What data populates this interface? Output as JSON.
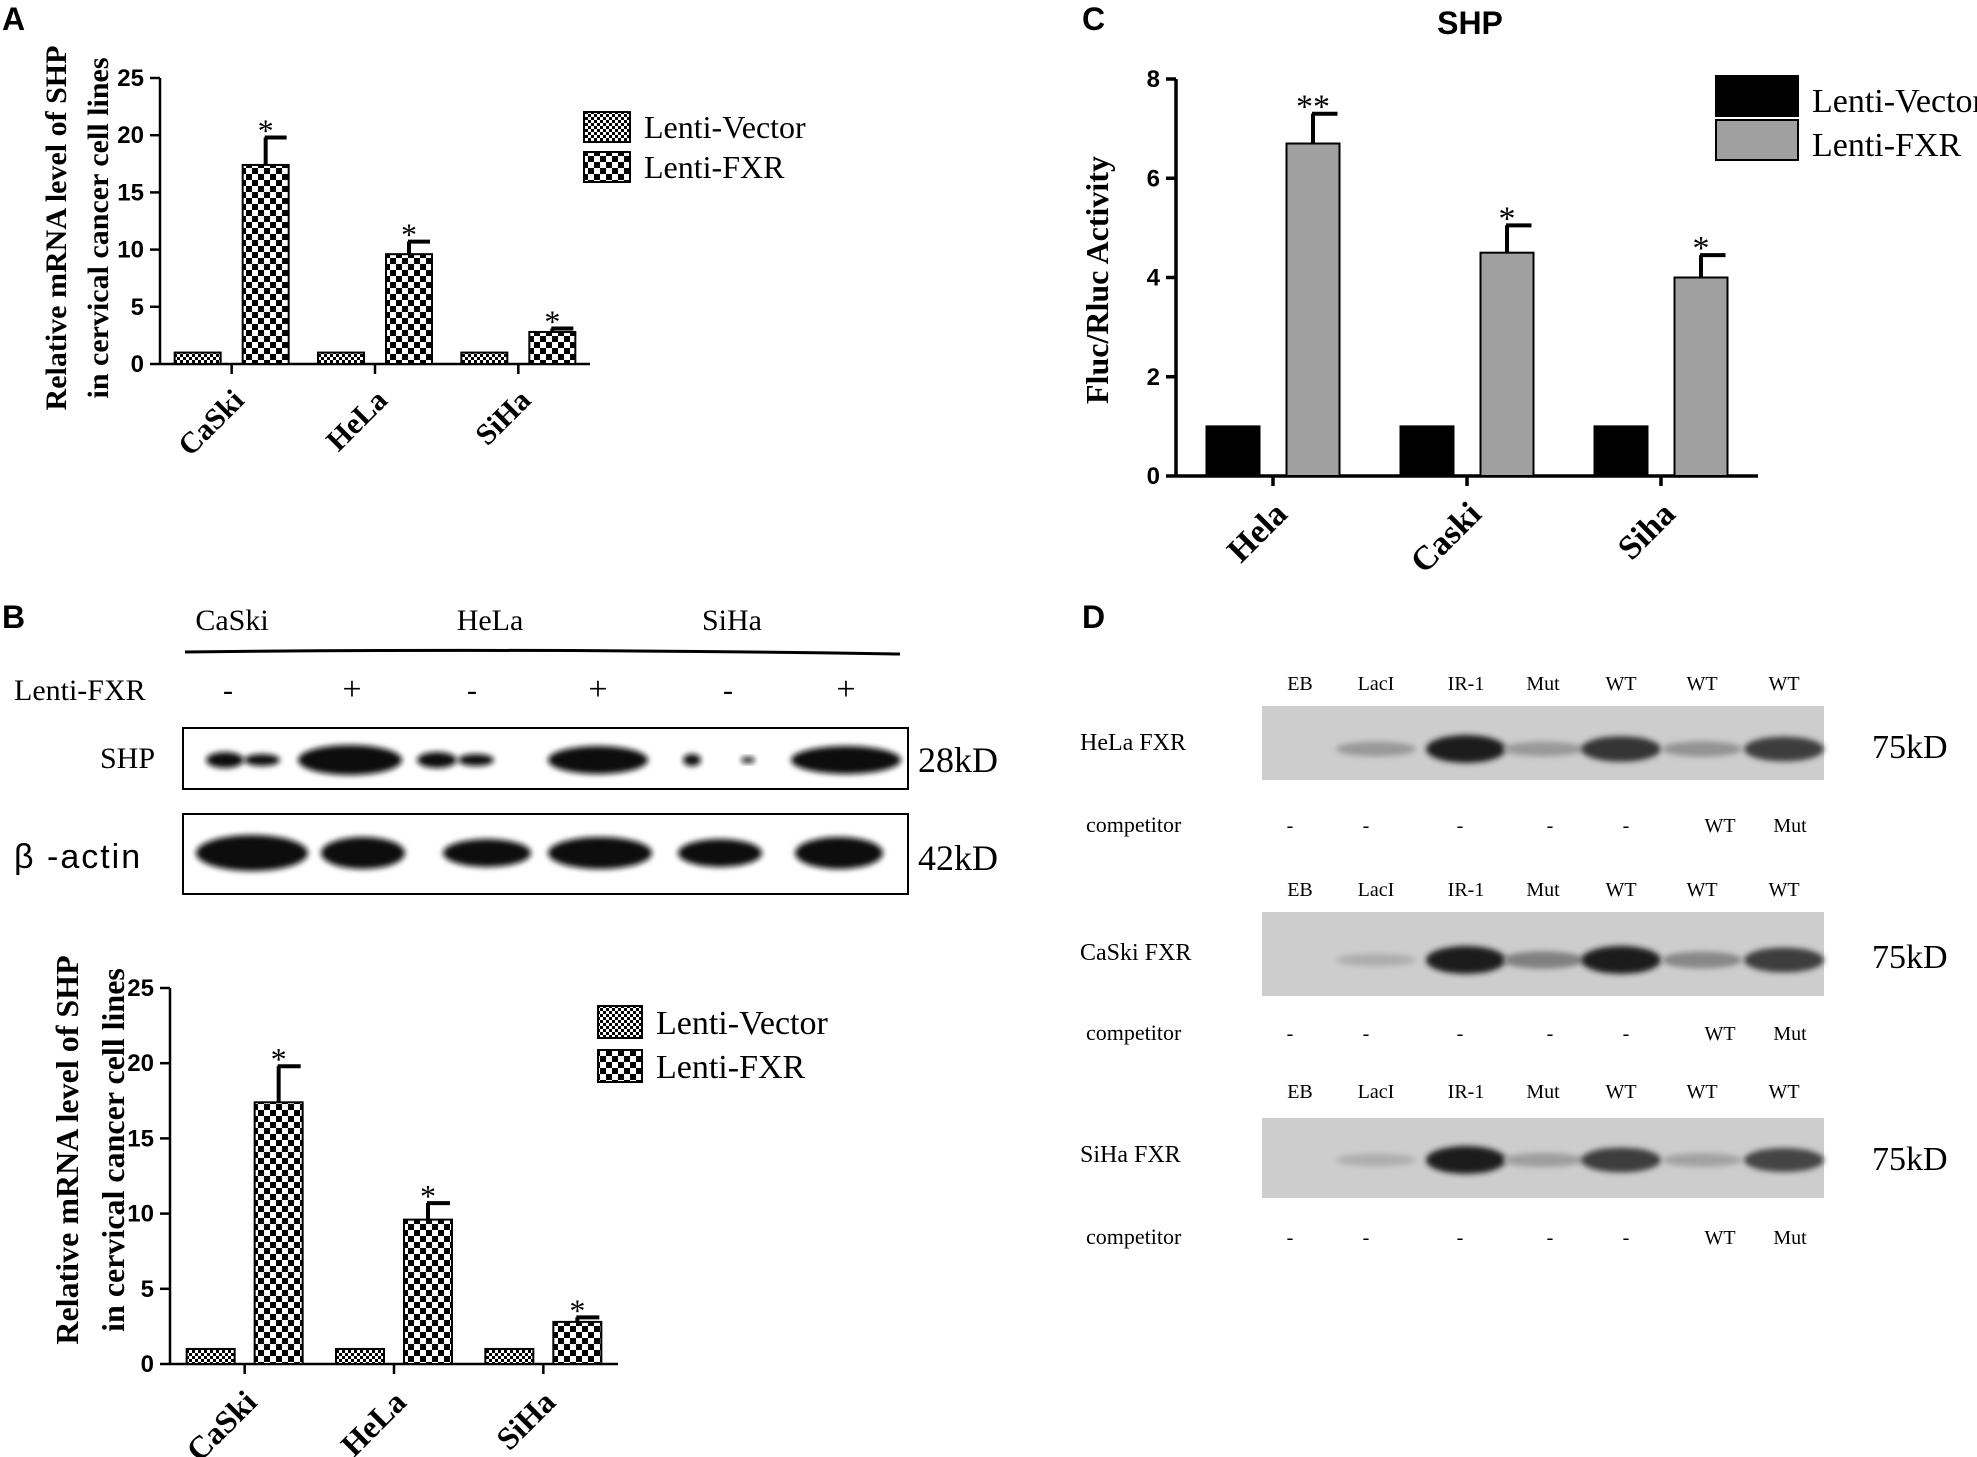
{
  "panels": {
    "a": "A",
    "b": "B",
    "c": "C",
    "d": "D"
  },
  "colors": {
    "vector_fill": "checker-small",
    "fxr_fill": "checker-large",
    "c_vector": "#000000",
    "c_fxr": "#a0a0a0"
  },
  "chart_data": [
    {
      "id": "A",
      "type": "bar",
      "title": "",
      "ylabel_line1": "Relative mRNA level of SHP",
      "ylabel_line2": "in cervical cancer cell lines",
      "categories": [
        "CaSki",
        "HeLa",
        "SiHa"
      ],
      "ylim": [
        0,
        25
      ],
      "yticks": [
        "0",
        "5",
        "10",
        "15",
        "20",
        "25"
      ],
      "series": [
        {
          "name": "Lenti-Vector",
          "values": [
            1,
            1,
            1
          ],
          "errors": [
            0,
            0,
            0
          ],
          "sig": [
            "",
            "",
            ""
          ]
        },
        {
          "name": "Lenti-FXR",
          "values": [
            17.4,
            9.6,
            2.8
          ],
          "errors": [
            2.4,
            1.1,
            0.3
          ],
          "sig": [
            "*",
            "*",
            "*"
          ]
        }
      ],
      "legend": "top-right",
      "grid": false
    },
    {
      "id": "B",
      "type": "bar",
      "title": "",
      "ylabel_line1": "Relative mRNA level of SHP",
      "ylabel_line2": "in cervical cancer cell lines",
      "categories": [
        "CaSki",
        "HeLa",
        "SiHa"
      ],
      "ylim": [
        0,
        25
      ],
      "yticks": [
        "0",
        "5",
        "10",
        "15",
        "20",
        "25"
      ],
      "series": [
        {
          "name": "Lenti-Vector",
          "values": [
            1,
            1,
            1
          ],
          "errors": [
            0,
            0,
            0
          ],
          "sig": [
            "",
            "",
            ""
          ]
        },
        {
          "name": "Lenti-FXR",
          "values": [
            17.4,
            9.6,
            2.8
          ],
          "errors": [
            2.4,
            1.1,
            0.3
          ],
          "sig": [
            "*",
            "*",
            "*"
          ]
        }
      ],
      "legend": "top-right",
      "grid": false
    },
    {
      "id": "C",
      "type": "bar",
      "title": "SHP",
      "ylabel": "Fluc/Rluc Activity",
      "categories": [
        "Hela",
        "Caski",
        "Siha"
      ],
      "ylim": [
        0,
        8
      ],
      "yticks": [
        "0",
        "2",
        "4",
        "6",
        "8"
      ],
      "series": [
        {
          "name": "Lenti-Vector",
          "values": [
            1,
            1,
            1
          ],
          "errors": [
            0,
            0,
            0
          ],
          "sig": [
            "",
            "",
            ""
          ]
        },
        {
          "name": "Lenti-FXR",
          "values": [
            6.7,
            4.5,
            4.0
          ],
          "errors": [
            0.6,
            0.55,
            0.45
          ],
          "sig": [
            "**",
            "*",
            "*"
          ]
        }
      ],
      "legend": "top-right",
      "grid": false
    }
  ],
  "western": {
    "cell_lines": [
      "CaSki",
      "HeLa",
      "SiHa"
    ],
    "treatment_label": "Lenti-FXR",
    "lanes": [
      "-",
      "+",
      "-",
      "+",
      "-",
      "+"
    ],
    "rows": [
      {
        "label": "SHP",
        "kd": "28kD"
      },
      {
        "label": "β -actin",
        "kd": "42kD"
      }
    ]
  },
  "emsa": {
    "lane_labels": [
      "EB",
      "LacI",
      "IR-1",
      "Mut",
      "WT",
      "WT",
      "WT"
    ],
    "competitor_label": "competitor",
    "competitors": [
      "-",
      "-",
      "-",
      "-",
      "-",
      "WT",
      "Mut"
    ],
    "kd": "75kD",
    "blots": [
      {
        "label": "HeLa  FXR"
      },
      {
        "label": "CaSki  FXR"
      },
      {
        "label": "SiHa  FXR"
      }
    ]
  }
}
